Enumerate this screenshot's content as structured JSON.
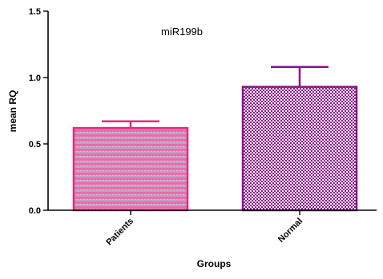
{
  "chart_data": {
    "type": "bar",
    "title": "miR199b",
    "xlabel": "Groups",
    "ylabel": "mean RQ",
    "categories": [
      "Patients",
      "Normal"
    ],
    "values": [
      0.62,
      0.93
    ],
    "error_upper": [
      0.67,
      1.08
    ],
    "ylim": [
      0,
      1.5
    ],
    "yticks": [
      0.0,
      0.5,
      1.0,
      1.5
    ],
    "ytick_labels": [
      "0.0",
      "0.5",
      "1.0",
      "1.5"
    ],
    "grid": false,
    "legend": "none",
    "colors": {
      "Patients": {
        "stroke": "#e8287a",
        "fill_a": "#f06aa6",
        "fill_b": "#b7a4c8"
      },
      "Normal": {
        "stroke": "#8e0f8e",
        "fill_a": "#8e0f8e",
        "fill_b": "#ffffff"
      }
    }
  }
}
